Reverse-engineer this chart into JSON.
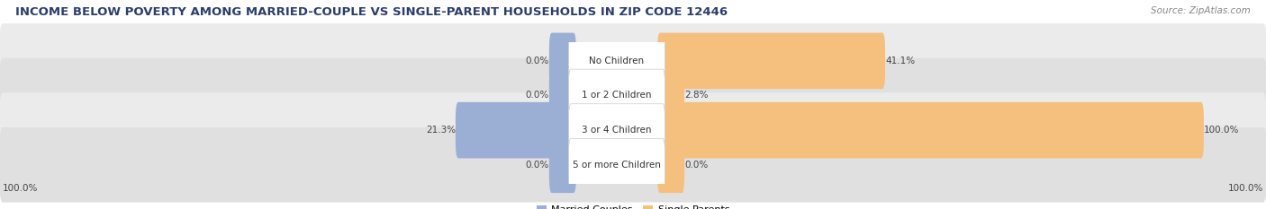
{
  "title": "INCOME BELOW POVERTY AMONG MARRIED-COUPLE VS SINGLE-PARENT HOUSEHOLDS IN ZIP CODE 12446",
  "source": "Source: ZipAtlas.com",
  "categories": [
    "No Children",
    "1 or 2 Children",
    "3 or 4 Children",
    "5 or more Children"
  ],
  "married_values": [
    0.0,
    0.0,
    21.3,
    0.0
  ],
  "single_values": [
    41.1,
    2.8,
    100.0,
    0.0
  ],
  "married_color": "#9bafd4",
  "single_color": "#f5bf7e",
  "row_bg_color_odd": "#ebebeb",
  "row_bg_color_even": "#e0e0e0",
  "center_label_bg": "#ffffff",
  "title_fontsize": 9.5,
  "source_fontsize": 7.5,
  "label_fontsize": 7.5,
  "cat_fontsize": 7.5,
  "axis_label_left": "100.0%",
  "axis_label_right": "100.0%",
  "max_value": 100.0,
  "figsize": [
    14.06,
    2.33
  ],
  "dpi": 100
}
